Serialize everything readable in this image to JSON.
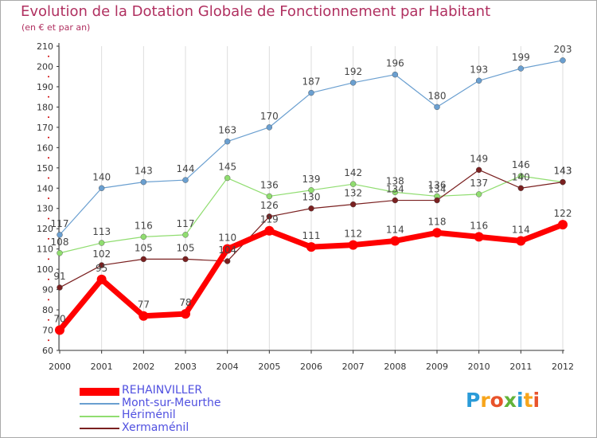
{
  "title": "Evolution de la Dotation Globale de Fonctionnement par Habitant",
  "subtitle": "(en € et par an)",
  "logo": {
    "letters": [
      "P",
      "r",
      "o",
      "x",
      "i",
      "t",
      "i"
    ],
    "colors": [
      "#2a9bd8",
      "#f7a51c",
      "#e8532b",
      "#62b33a",
      "#2a9bd8",
      "#f7a51c",
      "#e8532b"
    ]
  },
  "chart_data": {
    "type": "line",
    "title": "Evolution de la Dotation Globale de Fonctionnement par Habitant",
    "subtitle": "(en € et par an)",
    "xlabel": "",
    "ylabel": "",
    "x": [
      "2000",
      "2001",
      "2002",
      "2003",
      "2004",
      "2005",
      "2006",
      "2007",
      "2008",
      "2009",
      "2010",
      "2011",
      "2012"
    ],
    "ylim": [
      60,
      210
    ],
    "yticks": [
      60,
      70,
      80,
      90,
      100,
      110,
      120,
      130,
      140,
      150,
      160,
      170,
      180,
      190,
      200,
      210
    ],
    "grid": "vertical",
    "legend": "bottom-left",
    "series": [
      {
        "name": "REHAINVILLER",
        "color": "#ff0000",
        "values": [
          70,
          95,
          77,
          78,
          110,
          119,
          111,
          112,
          114,
          118,
          116,
          114,
          122
        ],
        "labels": [
          "70",
          "95",
          "77",
          "78",
          "110",
          "119",
          "111",
          "112",
          "114",
          "118",
          "116",
          "114",
          "122"
        ]
      },
      {
        "name": "Mont-sur-Meurthe",
        "color": "#6a9fd0",
        "values": [
          117,
          140,
          143,
          144,
          163,
          170,
          187,
          192,
          196,
          180,
          193,
          199,
          203
        ],
        "labels": [
          "117",
          "140",
          "143",
          "144",
          "163",
          "170",
          "187",
          "192",
          "196",
          "180",
          "193",
          "199",
          "203"
        ]
      },
      {
        "name": "Hériménil",
        "color": "#90dd70",
        "values": [
          108,
          113,
          116,
          117,
          145,
          136,
          139,
          142,
          138,
          136,
          137,
          146,
          143
        ],
        "labels": [
          "108",
          "113",
          "116",
          "117",
          "145",
          "136",
          "139",
          "142",
          "138",
          "136",
          "137",
          "146",
          "143"
        ]
      },
      {
        "name": "Xermaménil",
        "color": "#7a2020",
        "values": [
          91,
          102,
          105,
          105,
          104,
          126,
          130,
          132,
          134,
          134,
          149,
          140,
          143
        ],
        "labels": [
          "91",
          "102",
          "105",
          "105",
          "104",
          "126",
          "130",
          "132",
          "134",
          "134",
          "149",
          "140",
          "143"
        ]
      }
    ]
  }
}
